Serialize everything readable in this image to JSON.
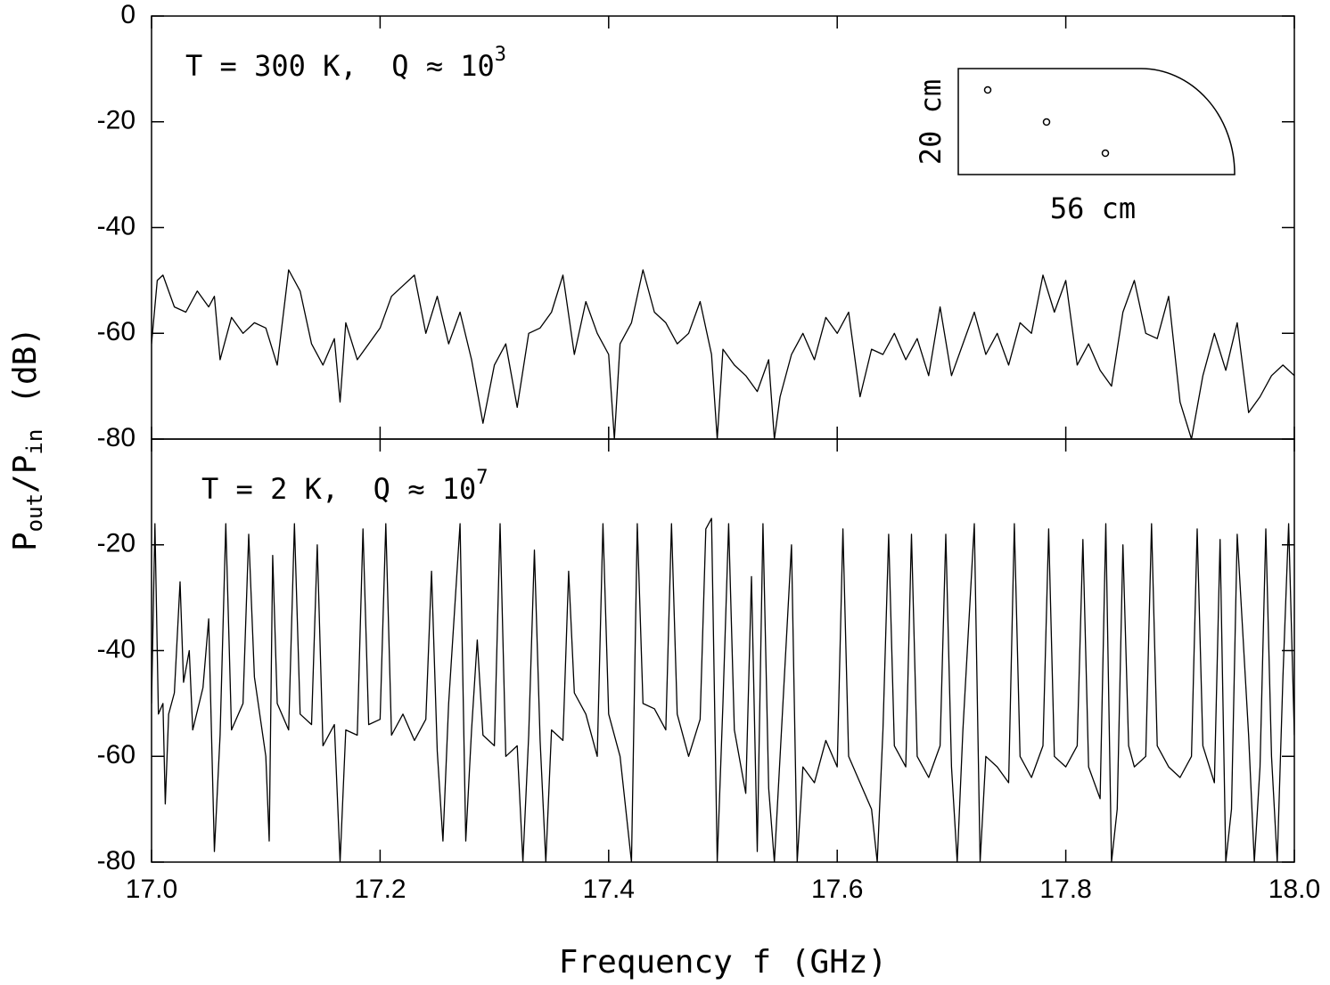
{
  "figure": {
    "xlabel": "Frequency f (GHz)",
    "ylabel_parts": [
      "P",
      "out",
      "/P",
      "in",
      "(dB)"
    ],
    "inset": {
      "height_label": "20 cm",
      "width_label": "56 cm"
    }
  },
  "chart_data": [
    {
      "type": "line",
      "annotation": "T = 300 K,  Q ≈ 10",
      "annotation_exponent": "3",
      "xlim": [
        17,
        18
      ],
      "ylim": [
        -80,
        0
      ],
      "xticks": [
        17,
        17.2,
        17.4,
        17.6,
        17.8,
        18
      ],
      "yticks": [
        0,
        -20,
        -40,
        -60,
        -80
      ],
      "series": [
        {
          "color": "#000000",
          "x": [
            17.0,
            17.005,
            17.01,
            17.02,
            17.03,
            17.04,
            17.05,
            17.055,
            17.06,
            17.07,
            17.08,
            17.09,
            17.1,
            17.11,
            17.12,
            17.13,
            17.14,
            17.15,
            17.16,
            17.165,
            17.17,
            17.18,
            17.19,
            17.2,
            17.21,
            17.22,
            17.23,
            17.24,
            17.25,
            17.26,
            17.27,
            17.28,
            17.29,
            17.3,
            17.31,
            17.32,
            17.33,
            17.34,
            17.35,
            17.36,
            17.37,
            17.38,
            17.39,
            17.4,
            17.405,
            17.41,
            17.42,
            17.43,
            17.44,
            17.45,
            17.46,
            17.47,
            17.48,
            17.49,
            17.495,
            17.5,
            17.51,
            17.52,
            17.53,
            17.54,
            17.545,
            17.55,
            17.56,
            17.57,
            17.58,
            17.59,
            17.6,
            17.61,
            17.62,
            17.63,
            17.64,
            17.65,
            17.66,
            17.67,
            17.68,
            17.69,
            17.7,
            17.71,
            17.72,
            17.73,
            17.74,
            17.75,
            17.76,
            17.77,
            17.78,
            17.79,
            17.8,
            17.81,
            17.82,
            17.83,
            17.84,
            17.85,
            17.86,
            17.87,
            17.88,
            17.89,
            17.9,
            17.91,
            17.92,
            17.93,
            17.94,
            17.95,
            17.96,
            17.97,
            17.98,
            17.99,
            18.0
          ],
          "values": [
            -62,
            -50,
            -49,
            -55,
            -56,
            -52,
            -55,
            -53,
            -65,
            -57,
            -60,
            -58,
            -59,
            -66,
            -48,
            -52,
            -62,
            -66,
            -61,
            -73,
            -58,
            -65,
            -62,
            -59,
            -53,
            -51,
            -49,
            -60,
            -53,
            -62,
            -56,
            -65,
            -77,
            -66,
            -62,
            -74,
            -60,
            -59,
            -56,
            -49,
            -64,
            -54,
            -60,
            -64,
            -80,
            -62,
            -58,
            -48,
            -56,
            -58,
            -62,
            -60,
            -54,
            -64,
            -80,
            -63,
            -66,
            -68,
            -71,
            -65,
            -80,
            -72,
            -64,
            -60,
            -65,
            -57,
            -60,
            -56,
            -72,
            -63,
            -64,
            -60,
            -65,
            -61,
            -68,
            -55,
            -68,
            -62,
            -56,
            -64,
            -60,
            -66,
            -58,
            -60,
            -49,
            -56,
            -50,
            -66,
            -62,
            -67,
            -70,
            -56,
            -50,
            -60,
            -61,
            -53,
            -73,
            -80,
            -68,
            -60,
            -67,
            -58,
            -75,
            -72,
            -68,
            -66,
            -68
          ]
        }
      ]
    },
    {
      "type": "line",
      "annotation": "T = 2 K,  Q ≈ 10",
      "annotation_exponent": "7",
      "xlim": [
        17,
        18
      ],
      "ylim": [
        -80,
        0
      ],
      "xticks": [
        {
          "value": 17,
          "label": "17.0"
        },
        17.2,
        17.4,
        17.6,
        17.8,
        {
          "value": 18,
          "label": "18.0"
        }
      ],
      "yticks": [
        -20,
        -40,
        -60,
        -80
      ],
      "series": [
        {
          "color": "#000000",
          "x": [
            17.0,
            17.003,
            17.006,
            17.01,
            17.012,
            17.015,
            17.02,
            17.025,
            17.028,
            17.033,
            17.036,
            17.045,
            17.05,
            17.055,
            17.06,
            17.065,
            17.07,
            17.08,
            17.085,
            17.09,
            17.1,
            17.103,
            17.106,
            17.11,
            17.12,
            17.125,
            17.13,
            17.14,
            17.145,
            17.15,
            17.16,
            17.165,
            17.17,
            17.18,
            17.185,
            17.19,
            17.2,
            17.205,
            17.21,
            17.22,
            17.23,
            17.24,
            17.245,
            17.25,
            17.255,
            17.26,
            17.27,
            17.275,
            17.28,
            17.285,
            17.29,
            17.3,
            17.305,
            17.31,
            17.32,
            17.325,
            17.33,
            17.335,
            17.34,
            17.345,
            17.35,
            17.36,
            17.365,
            17.37,
            17.38,
            17.39,
            17.395,
            17.4,
            17.41,
            17.42,
            17.425,
            17.43,
            17.44,
            17.45,
            17.455,
            17.46,
            17.47,
            17.48,
            17.485,
            17.49,
            17.495,
            17.5,
            17.505,
            17.51,
            17.52,
            17.525,
            17.53,
            17.535,
            17.54,
            17.545,
            17.55,
            17.56,
            17.565,
            17.57,
            17.58,
            17.59,
            17.6,
            17.605,
            17.61,
            17.62,
            17.63,
            17.635,
            17.64,
            17.645,
            17.65,
            17.66,
            17.665,
            17.67,
            17.68,
            17.69,
            17.695,
            17.7,
            17.705,
            17.71,
            17.72,
            17.725,
            17.73,
            17.74,
            17.75,
            17.755,
            17.76,
            17.77,
            17.78,
            17.785,
            17.79,
            17.8,
            17.81,
            17.815,
            17.82,
            17.83,
            17.835,
            17.84,
            17.845,
            17.85,
            17.855,
            17.86,
            17.87,
            17.875,
            17.88,
            17.89,
            17.9,
            17.91,
            17.915,
            17.92,
            17.93,
            17.935,
            17.94,
            17.945,
            17.95,
            17.96,
            17.965,
            17.97,
            17.975,
            17.98,
            17.985,
            17.99,
            17.995,
            18.0
          ],
          "values": [
            -50,
            -16,
            -52,
            -50,
            -69,
            -52,
            -48,
            -27,
            -46,
            -40,
            -55,
            -47,
            -34,
            -78,
            -56,
            -16,
            -55,
            -50,
            -18,
            -45,
            -60,
            -76,
            -22,
            -50,
            -55,
            -16,
            -52,
            -54,
            -20,
            -58,
            -54,
            -80,
            -55,
            -56,
            -17,
            -54,
            -53,
            -16,
            -56,
            -52,
            -57,
            -53,
            -25,
            -59,
            -76,
            -50,
            -16,
            -76,
            -55,
            -38,
            -56,
            -58,
            -16,
            -60,
            -58,
            -80,
            -56,
            -21,
            -57,
            -80,
            -55,
            -57,
            -25,
            -48,
            -52,
            -60,
            -16,
            -52,
            -60,
            -80,
            -16,
            -50,
            -51,
            -55,
            -16,
            -52,
            -60,
            -53,
            -17,
            -15,
            -80,
            -50,
            -16,
            -55,
            -67,
            -26,
            -78,
            -16,
            -66,
            -80,
            -60,
            -20,
            -80,
            -62,
            -65,
            -57,
            -62,
            -17,
            -60,
            -65,
            -70,
            -80,
            -55,
            -18,
            -58,
            -62,
            -18,
            -60,
            -64,
            -58,
            -18,
            -62,
            -80,
            -55,
            -16,
            -80,
            -60,
            -62,
            -65,
            -16,
            -60,
            -64,
            -58,
            -17,
            -60,
            -62,
            -58,
            -19,
            -62,
            -68,
            -16,
            -80,
            -70,
            -20,
            -58,
            -62,
            -60,
            -16,
            -58,
            -62,
            -64,
            -60,
            -17,
            -58,
            -65,
            -19,
            -80,
            -70,
            -18,
            -56,
            -80,
            -62,
            -17,
            -60,
            -80,
            -45,
            -16,
            -56
          ]
        }
      ]
    }
  ]
}
